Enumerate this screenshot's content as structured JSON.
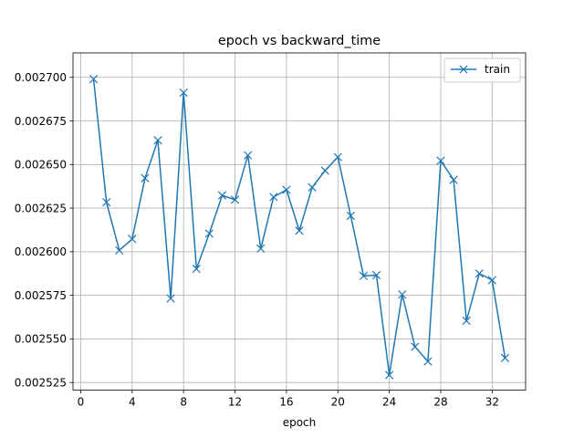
{
  "chart_data": {
    "type": "line",
    "title": "epoch vs backward_time",
    "xlabel": "epoch",
    "ylabel": "",
    "xlim": [
      -0.6,
      34.6
    ],
    "ylim": [
      0.0025206,
      0.002714
    ],
    "xticks": [
      0,
      4,
      8,
      12,
      16,
      20,
      24,
      28,
      32
    ],
    "xtick_labels": [
      "0",
      "4",
      "8",
      "12",
      "16",
      "20",
      "24",
      "28",
      "32"
    ],
    "yticks": [
      0.002525,
      0.00255,
      0.002575,
      0.0026,
      0.002625,
      0.00265,
      0.002675,
      0.0027
    ],
    "ytick_labels": [
      "0.002525",
      "0.002550",
      "0.002575",
      "0.002600",
      "0.002625",
      "0.002650",
      "0.002675",
      "0.002700"
    ],
    "grid": true,
    "legend_position": "top-right",
    "series": [
      {
        "name": "train",
        "color": "#1f77b4",
        "marker": "x",
        "x": [
          1,
          2,
          3,
          4,
          5,
          6,
          7,
          8,
          9,
          10,
          11,
          12,
          13,
          14,
          15,
          16,
          17,
          18,
          19,
          20,
          21,
          22,
          23,
          24,
          25,
          26,
          27,
          28,
          29,
          30,
          31,
          32,
          33
        ],
        "y": [
          0.002699,
          0.0026284,
          0.0026008,
          0.0026073,
          0.0026422,
          0.0026639,
          0.0025732,
          0.0026912,
          0.0025902,
          0.0026104,
          0.0026323,
          0.0026298,
          0.0026553,
          0.0026018,
          0.0026314,
          0.0026355,
          0.0026121,
          0.0026369,
          0.0026465,
          0.0026543,
          0.0026206,
          0.0025861,
          0.0025866,
          0.0025293,
          0.0025755,
          0.0025455,
          0.0025371,
          0.0026522,
          0.0026412,
          0.0025604,
          0.0025875,
          0.0025837,
          0.0025391
        ]
      }
    ]
  }
}
